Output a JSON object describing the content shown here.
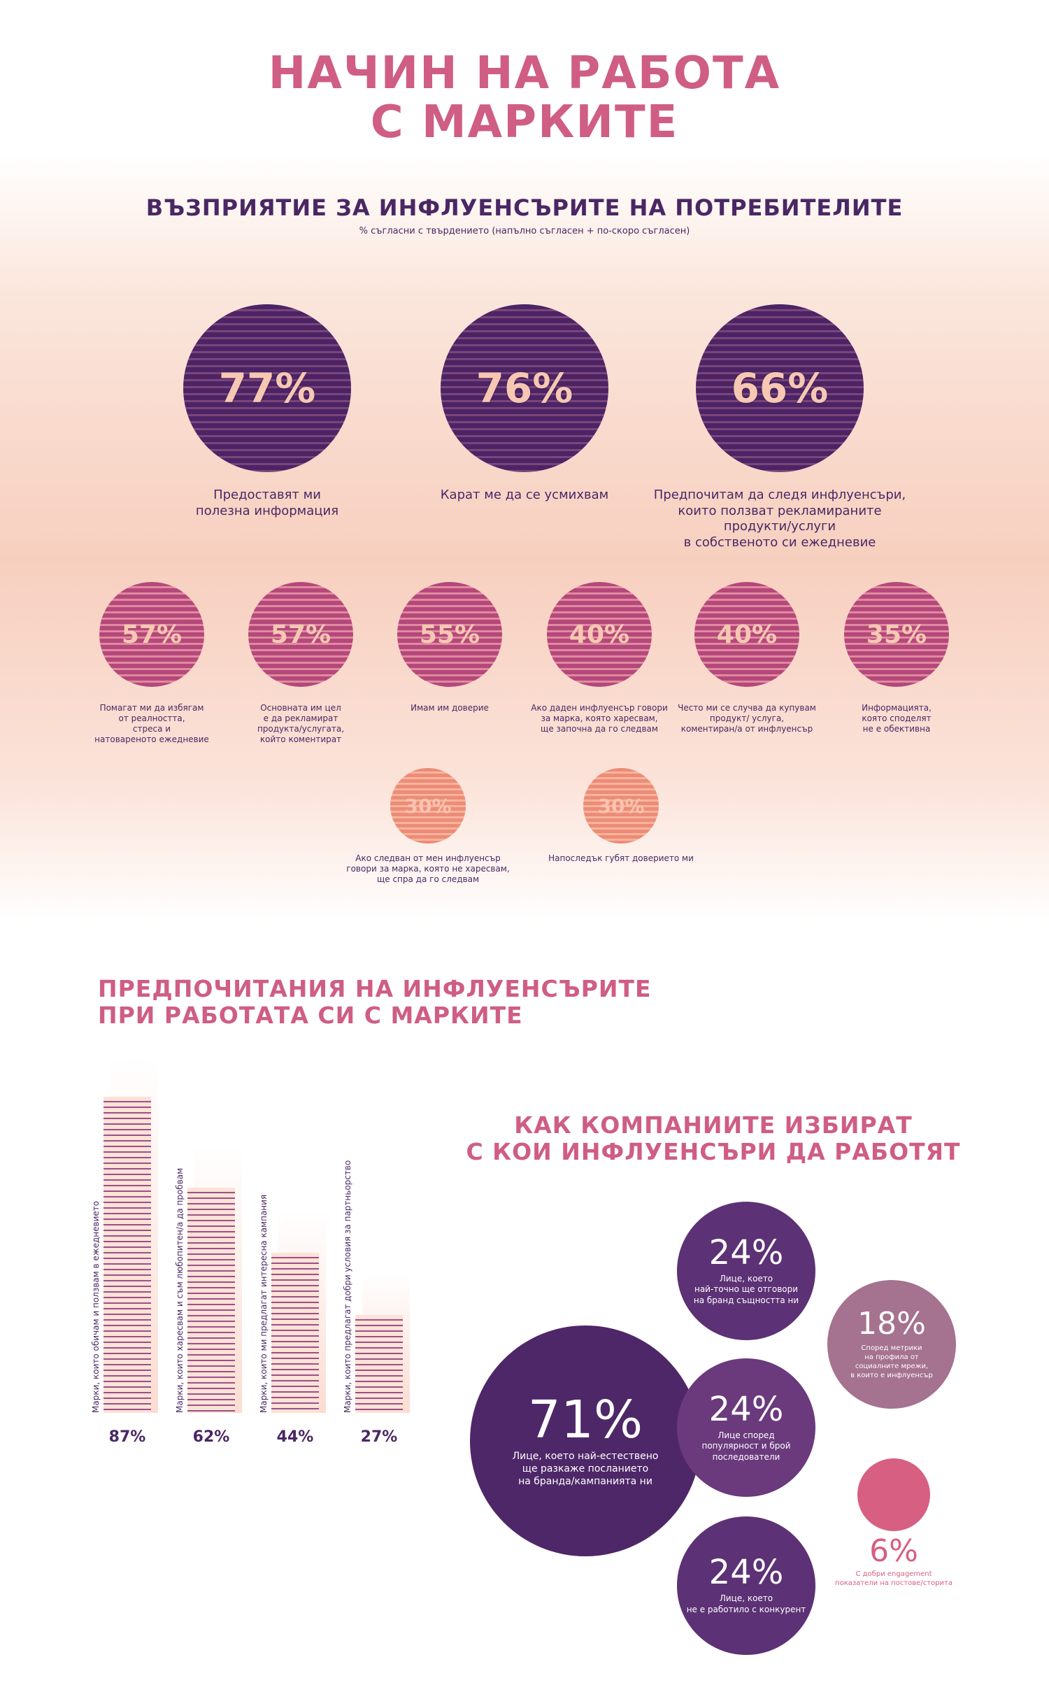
{
  "title_line1": "НАЧИН НА РАБОТА",
  "title_line2": "С МАРКИТЕ",
  "perception": {
    "title": "ВЪЗПРИЯТИЕ ЗА ИНФЛУЕНСЪРИТЕ НА ПОТРЕБИТЕЛИТЕ",
    "subtitle": "% съгласни с твърдението (напълно съгласен + по-скоро съгласен)",
    "large": [
      {
        "value": "77%",
        "lines": [
          "Предоставят ми",
          "полезна информация"
        ]
      },
      {
        "value": "76%",
        "lines": [
          "Карат ме да се усмихвам"
        ]
      },
      {
        "value": "66%",
        "lines": [
          "Предпочитам да следя инфлуенсъри,",
          "които ползват рекламираните",
          "продукти/услуги",
          "в собственото си ежедневие"
        ]
      }
    ],
    "medium": [
      {
        "value": "57%",
        "lines": [
          "Помагат ми да избягам",
          "от реалността,",
          "стреса и",
          "натовареното ежедневие"
        ]
      },
      {
        "value": "57%",
        "lines": [
          "Основната им цел",
          "е да рекламират",
          "продукта/услугата,",
          "който коментират"
        ]
      },
      {
        "value": "55%",
        "lines": [
          "Имам им доверие"
        ]
      },
      {
        "value": "40%",
        "lines": [
          "Ако даден инфлуенсър говори",
          "за марка, която харесвам,",
          "ще започна да го следвам"
        ]
      },
      {
        "value": "40%",
        "lines": [
          "Често ми се случва да купувам",
          "продукт/ услуга,",
          "коментиран/а от инфлуенсър"
        ]
      },
      {
        "value": "35%",
        "lines": [
          "Информацията,",
          "която споделят",
          "не е обективна"
        ]
      }
    ],
    "small": [
      {
        "value": "30%",
        "lines": [
          "Ако следван от мен инфлуенсър",
          "говори за марка, която не харесвам,",
          "ще спра да го следвам"
        ]
      },
      {
        "value": "30%",
        "lines": [
          "Напоследък губят доверието ми"
        ]
      }
    ]
  },
  "preferences": {
    "title_line1": "ПРЕДПОЧИТАНИЯ НА ИНФЛУЕНСЪРИТЕ",
    "title_line2": "ПРИ РАБОТАТА СИ С МАРКИТЕ",
    "chart_data": {
      "type": "bar",
      "categories": [
        "Марки, които обичам и ползвам в ежедневието",
        "Марки, които харесвам и съм любопитен/а да пробвам",
        "Марки, които ми предлагат интересна кампания",
        "Марки, които предлагат добри условия за партньорство"
      ],
      "values": [
        87,
        62,
        44,
        27
      ],
      "labels": [
        "87%",
        "62%",
        "44%",
        "27%"
      ],
      "ylim": [
        0,
        100
      ]
    }
  },
  "companies": {
    "title_line1": "КАК КОМПАНИИТЕ ИЗБИРАТ",
    "title_line2": "С КОИ ИНФЛУЕНСЪРИ ДА РАБОТЯТ",
    "bubbles": [
      {
        "value": "71%",
        "lines": [
          "Лице, което най-естествено",
          "ще разкаже посланието",
          "на бранда/кампанията ни"
        ],
        "color": "#4e2768"
      },
      {
        "value": "24%",
        "lines": [
          "Лице, което",
          "най-точно ще отговори",
          "на бранд същността ни"
        ],
        "color": "#5d3175"
      },
      {
        "value": "24%",
        "lines": [
          "Лице според",
          "популярност и брой",
          "последователи"
        ],
        "color": "#6a3a7d"
      },
      {
        "value": "24%",
        "lines": [
          "Лице, което",
          "не е работило с конкурент"
        ],
        "color": "#5d3175"
      },
      {
        "value": "18%",
        "lines": [
          "Според метрики",
          "на профила от",
          "социалните мрежи,",
          "в които е инфлуенсър"
        ],
        "color": "#a5728f"
      },
      {
        "value": "6%",
        "lines": [
          "С добри engagement",
          "показатели на постове/сторита"
        ],
        "color": "#d65f82"
      }
    ]
  }
}
